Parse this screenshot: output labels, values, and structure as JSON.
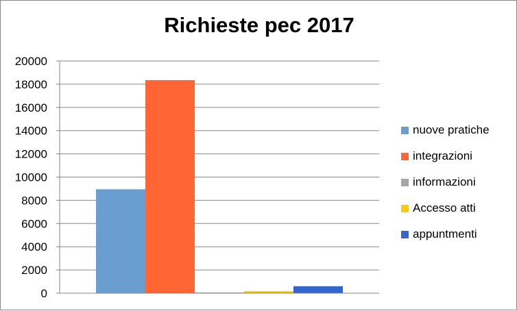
{
  "chart_data": {
    "type": "bar",
    "title": "Richieste pec 2017",
    "xlabel": "",
    "ylabel": "",
    "ylim": [
      0,
      20000
    ],
    "y_ticks": [
      "0",
      "2000",
      "4000",
      "6000",
      "8000",
      "10000",
      "12000",
      "14000",
      "16000",
      "18000",
      "20000"
    ],
    "grid": true,
    "legend_position": "right",
    "series": [
      {
        "name": "nuove pratiche",
        "value": 8950,
        "color": "#6a9dd0"
      },
      {
        "name": "integrazioni",
        "value": 18350,
        "color": "#ff6633"
      },
      {
        "name": "informazioni",
        "value": 60,
        "color": "#a6a6a6"
      },
      {
        "name": "Accesso atti",
        "value": 180,
        "color": "#ffcc00"
      },
      {
        "name": "appuntmenti",
        "value": 600,
        "color": "#3366cc"
      }
    ]
  }
}
